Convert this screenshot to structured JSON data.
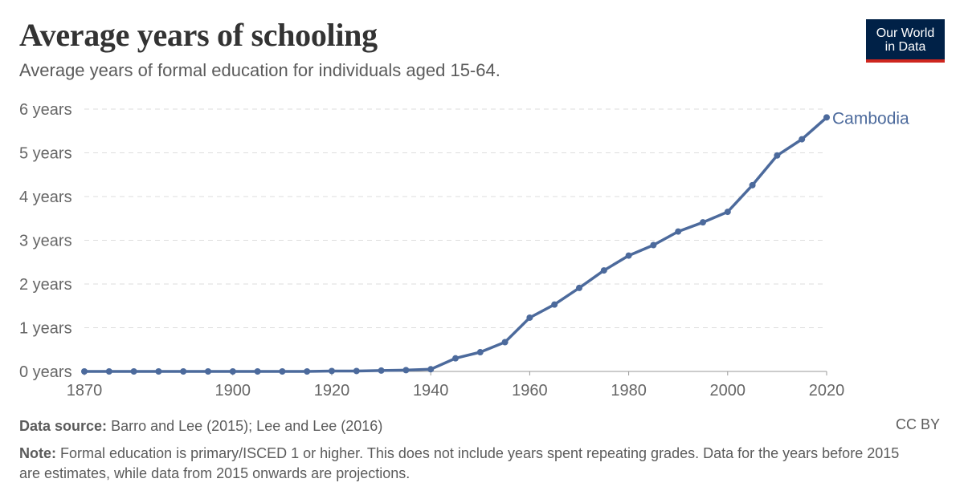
{
  "header": {
    "title": "Average years of schooling",
    "subtitle": "Average years of formal education for individuals aged 15-64."
  },
  "logo": {
    "line1": "Our World",
    "line2": "in Data"
  },
  "footer": {
    "source_label": "Data source:",
    "source_text": "Barro and Lee (2015); Lee and Lee (2016)",
    "license": "CC BY",
    "note_label": "Note:",
    "note_text": "Formal education is primary/ISCED 1 or higher. This does not include years spent repeating grades. Data for the years before 2015 are estimates, while data from 2015 onwards are projections."
  },
  "chart_data": {
    "type": "line",
    "title": "Average years of schooling",
    "subtitle": "Average years of formal education for individuals aged 15-64.",
    "xlim": [
      1870,
      2020
    ],
    "ylim": [
      0,
      6
    ],
    "x_ticks": [
      1870,
      1900,
      1920,
      1940,
      1960,
      1980,
      2000,
      2020
    ],
    "y_ticks": [
      0,
      1,
      2,
      3,
      4,
      5,
      6
    ],
    "y_tick_suffix": " years",
    "grid": true,
    "line_color": "#4c6a9c",
    "series": [
      {
        "name": "Cambodia",
        "x": [
          1870,
          1875,
          1880,
          1885,
          1890,
          1895,
          1900,
          1905,
          1910,
          1915,
          1920,
          1925,
          1930,
          1935,
          1940,
          1945,
          1950,
          1955,
          1960,
          1965,
          1970,
          1975,
          1980,
          1985,
          1990,
          1995,
          2000,
          2005,
          2010,
          2015,
          2020
        ],
        "y": [
          0.0,
          0.0,
          0.0,
          0.0,
          0.0,
          0.0,
          0.0,
          0.0,
          0.0,
          0.0,
          0.01,
          0.01,
          0.02,
          0.03,
          0.05,
          0.3,
          0.44,
          0.67,
          1.23,
          1.53,
          1.91,
          2.31,
          2.65,
          2.89,
          3.2,
          3.41,
          3.65,
          4.26,
          4.94,
          5.31,
          5.81
        ]
      }
    ]
  }
}
